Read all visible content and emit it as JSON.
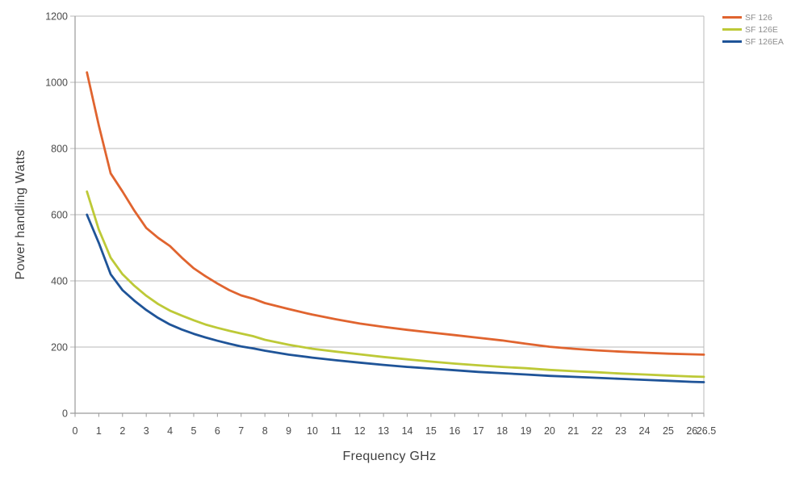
{
  "chart_data": {
    "type": "line",
    "title": "",
    "xlabel": "Frequency GHz",
    "ylabel": "Power handling Watts",
    "xlim": [
      0,
      26.5
    ],
    "ylim": [
      0,
      1200
    ],
    "xticks": [
      0,
      1,
      2,
      3,
      4,
      5,
      6,
      7,
      8,
      9,
      10,
      11,
      12,
      13,
      14,
      15,
      16,
      17,
      18,
      19,
      20,
      21,
      22,
      23,
      24,
      25,
      26,
      26.5
    ],
    "yticks": [
      0,
      200,
      400,
      600,
      800,
      1000,
      1200
    ],
    "grid": "horizontal",
    "legend_position": "top-right",
    "series": [
      {
        "name": "SF 126",
        "color": "#e0642f",
        "points": [
          [
            0.5,
            1030
          ],
          [
            1,
            870
          ],
          [
            1.5,
            725
          ],
          [
            2,
            670
          ],
          [
            2.5,
            612
          ],
          [
            3,
            560
          ],
          [
            3.5,
            530
          ],
          [
            4,
            505
          ],
          [
            4.5,
            470
          ],
          [
            5,
            438
          ],
          [
            5.5,
            414
          ],
          [
            6,
            392
          ],
          [
            6.5,
            372
          ],
          [
            7,
            356
          ],
          [
            7.5,
            346
          ],
          [
            8,
            333
          ],
          [
            9,
            315
          ],
          [
            10,
            298
          ],
          [
            11,
            284
          ],
          [
            12,
            271
          ],
          [
            13,
            261
          ],
          [
            14,
            252
          ],
          [
            15,
            244
          ],
          [
            16,
            236
          ],
          [
            17,
            228
          ],
          [
            18,
            220
          ],
          [
            19,
            210
          ],
          [
            20,
            201
          ],
          [
            21,
            195
          ],
          [
            22,
            190
          ],
          [
            23,
            186
          ],
          [
            24,
            183
          ],
          [
            25,
            180
          ],
          [
            26,
            178
          ],
          [
            26.5,
            177
          ]
        ]
      },
      {
        "name": "SF 126E",
        "color": "#bdc937",
        "points": [
          [
            0.5,
            670
          ],
          [
            1,
            555
          ],
          [
            1.5,
            470
          ],
          [
            2,
            420
          ],
          [
            2.5,
            385
          ],
          [
            3,
            355
          ],
          [
            3.5,
            330
          ],
          [
            4,
            310
          ],
          [
            4.5,
            295
          ],
          [
            5,
            281
          ],
          [
            5.5,
            268
          ],
          [
            6,
            258
          ],
          [
            6.5,
            249
          ],
          [
            7,
            241
          ],
          [
            7.5,
            233
          ],
          [
            8,
            222
          ],
          [
            9,
            207
          ],
          [
            10,
            195
          ],
          [
            11,
            186
          ],
          [
            12,
            178
          ],
          [
            13,
            170
          ],
          [
            14,
            163
          ],
          [
            15,
            156
          ],
          [
            16,
            150
          ],
          [
            17,
            145
          ],
          [
            18,
            140
          ],
          [
            19,
            136
          ],
          [
            20,
            131
          ],
          [
            21,
            127
          ],
          [
            22,
            124
          ],
          [
            23,
            120
          ],
          [
            24,
            117
          ],
          [
            25,
            114
          ],
          [
            26,
            111
          ],
          [
            26.5,
            110
          ]
        ]
      },
      {
        "name": "SF 126EA",
        "color": "#1f5498",
        "points": [
          [
            0.5,
            600
          ],
          [
            1,
            515
          ],
          [
            1.5,
            420
          ],
          [
            2,
            372
          ],
          [
            2.5,
            340
          ],
          [
            3,
            312
          ],
          [
            3.5,
            288
          ],
          [
            4,
            268
          ],
          [
            4.5,
            253
          ],
          [
            5,
            240
          ],
          [
            5.5,
            229
          ],
          [
            6,
            219
          ],
          [
            6.5,
            210
          ],
          [
            7,
            202
          ],
          [
            7.5,
            196
          ],
          [
            8,
            189
          ],
          [
            9,
            177
          ],
          [
            10,
            168
          ],
          [
            11,
            160
          ],
          [
            12,
            153
          ],
          [
            13,
            146
          ],
          [
            14,
            140
          ],
          [
            15,
            135
          ],
          [
            16,
            130
          ],
          [
            17,
            125
          ],
          [
            18,
            121
          ],
          [
            19,
            117
          ],
          [
            20,
            113
          ],
          [
            21,
            110
          ],
          [
            22,
            107
          ],
          [
            23,
            104
          ],
          [
            24,
            101
          ],
          [
            25,
            98
          ],
          [
            26,
            95
          ],
          [
            26.5,
            94
          ]
        ]
      }
    ],
    "style": {
      "gridline_color": "#b8b8b8",
      "axis_color": "#9a9a9a",
      "tick_label_color": "#4a4a4a",
      "axis_title_color": "#3f3f3f",
      "legend_text_color": "#8d8d8d",
      "background": "#ffffff"
    }
  }
}
